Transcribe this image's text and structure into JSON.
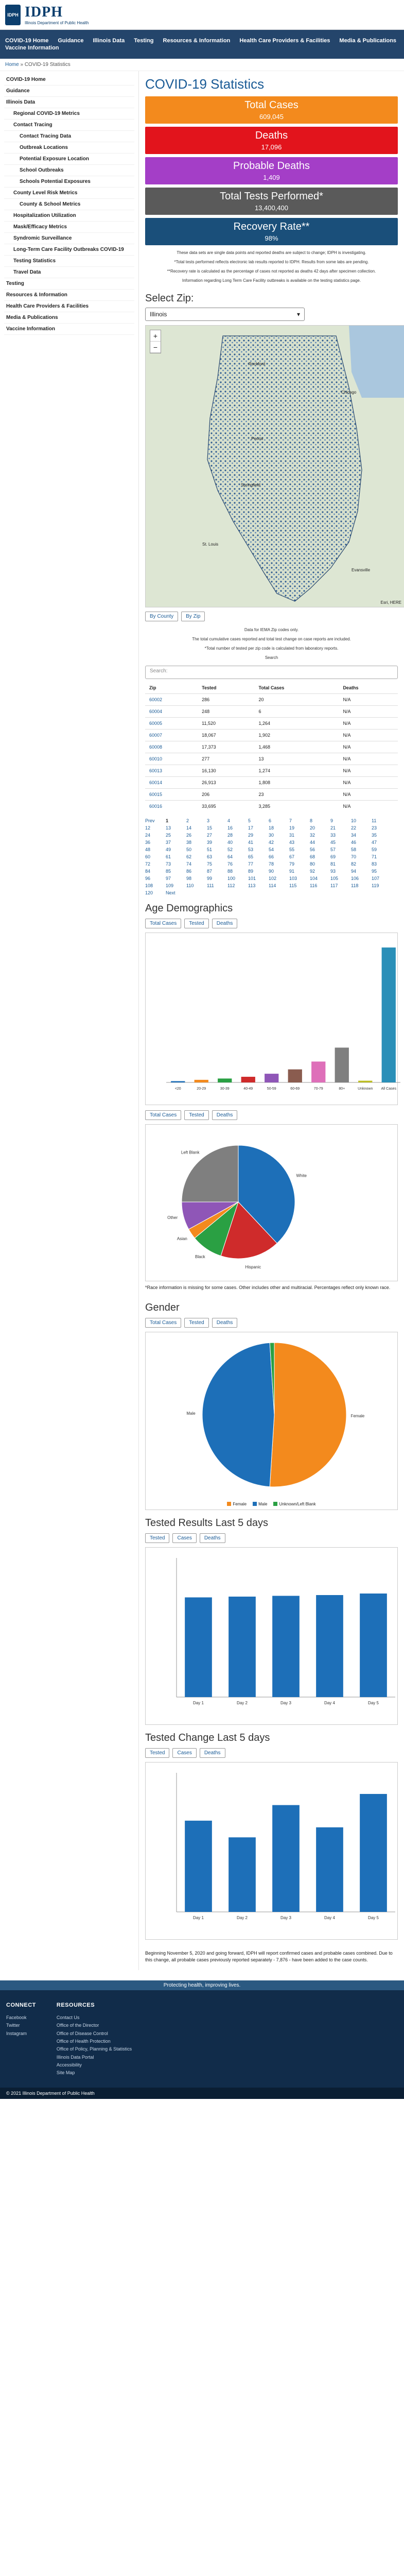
{
  "header": {
    "logo_abbr": "IDPH",
    "logo_text": "IDPH",
    "logo_sub": "Illinois Department of Public Health"
  },
  "nav": [
    "COVID-19 Home",
    "Guidance",
    "Illinois Data",
    "Testing",
    "Resources & Information",
    "Health Care Providers & Facilities",
    "Media & Publications",
    "Vaccine Information"
  ],
  "breadcrumb": {
    "home": "Home",
    "current": "COVID-19 Statistics"
  },
  "sidebar": [
    {
      "label": "COVID-19 Home",
      "kind": "bold"
    },
    {
      "label": "Guidance",
      "kind": "bold"
    },
    {
      "label": "Illinois Data",
      "kind": "bold"
    },
    {
      "label": "Regional COVID-19 Metrics",
      "kind": "sub"
    },
    {
      "label": "Contact Tracing",
      "kind": "sub"
    },
    {
      "label": "Contact Tracing Data",
      "kind": "sub2"
    },
    {
      "label": "Outbreak Locations",
      "kind": "sub2"
    },
    {
      "label": "Potential Exposure Location",
      "kind": "sub2"
    },
    {
      "label": "School Outbreaks",
      "kind": "sub2"
    },
    {
      "label": "Schools Potential Exposures",
      "kind": "sub2"
    },
    {
      "label": "County Level Risk Metrics",
      "kind": "sub"
    },
    {
      "label": "County & School Metrics",
      "kind": "sub2"
    },
    {
      "label": "Hospitalization Utilization",
      "kind": "sub"
    },
    {
      "label": "Mask/Efficacy Metrics",
      "kind": "sub"
    },
    {
      "label": "Syndromic Surveillance",
      "kind": "sub"
    },
    {
      "label": "Long-Term Care Facility Outbreaks COVID-19",
      "kind": "sub"
    },
    {
      "label": "Testing Statistics",
      "kind": "sub"
    },
    {
      "label": "Travel Data",
      "kind": "sub"
    },
    {
      "label": "Testing",
      "kind": "bold"
    },
    {
      "label": "Resources & Information",
      "kind": "bold"
    },
    {
      "label": "Health Care Providers & Facilities",
      "kind": "bold"
    },
    {
      "label": "Media & Publications",
      "kind": "bold"
    },
    {
      "label": "Vaccine Information",
      "kind": "bold"
    }
  ],
  "page_title": "COVID-19 Statistics",
  "stats": [
    {
      "label": "Total Cases",
      "value": "609,045",
      "color": "#f38a1d"
    },
    {
      "label": "Deaths",
      "value": "17,096",
      "color": "#e2141c"
    },
    {
      "label": "Probable Deaths",
      "value": "1,409",
      "color": "#a43ec7"
    },
    {
      "label": "Total Tests Performed*",
      "value": "13,400,400",
      "color": "#5a5a5a"
    },
    {
      "label": "Recovery Rate**",
      "value": "98%",
      "color": "#1a4f7a"
    }
  ],
  "notes": [
    "These data sets are single data points and reported deaths are subject to change; IDPH is investigating.",
    "*Total tests performed reflects electronic lab results reported to IDPH. Results from some labs are pending.",
    "**Recovery rate is calculated as the percentage of cases not reported as deaths 42 days after specimen collection.",
    "Information regarding Long Term Care Facility outbreaks is available on the testing statistics page."
  ],
  "select_zip": {
    "title": "Select Zip:",
    "value": "Illinois"
  },
  "map_labels": {
    "city1": "Rockford",
    "city2": "Chicago",
    "city3": "Peoria",
    "city4": "Springfield",
    "city5": "Evansville",
    "city6": "St. Louis",
    "source": "Esri, HERE"
  },
  "zip_buttons": [
    "By County",
    "By Zip"
  ],
  "zip_notes": [
    "Data for IEMA Zip codes only.",
    "The total cumulative cases reported and total test change on case reports are included.",
    "*Total number of tested per zip code is calculated from laboratory reports.",
    "Search"
  ],
  "search_placeholder": "Search:",
  "zip_table": {
    "headers": [
      "Zip",
      "Tested",
      "Total Cases",
      "Deaths"
    ],
    "rows": [
      [
        "60002",
        "286",
        "20",
        "N/A"
      ],
      [
        "60004",
        "248",
        "6",
        "N/A"
      ],
      [
        "60005",
        "11,520",
        "1,264",
        "N/A"
      ],
      [
        "60007",
        "18,067",
        "1,902",
        "N/A"
      ],
      [
        "60008",
        "17,373",
        "1,468",
        "N/A"
      ],
      [
        "60010",
        "277",
        "13",
        "N/A"
      ],
      [
        "60013",
        "16,130",
        "1,274",
        "N/A"
      ],
      [
        "60014",
        "26,913",
        "1,808",
        "N/A"
      ],
      [
        "60015",
        "206",
        "23",
        "N/A"
      ],
      [
        "60016",
        "33,695",
        "3,285",
        "N/A"
      ]
    ]
  },
  "pages": [
    "Prev",
    "1",
    "2",
    "3",
    "4",
    "5",
    "6",
    "7",
    "8",
    "9",
    "10",
    "11",
    "12",
    "13",
    "14",
    "15",
    "16",
    "17",
    "18",
    "19",
    "20",
    "21",
    "22",
    "23",
    "24",
    "25",
    "26",
    "27",
    "28",
    "29",
    "30",
    "31",
    "32",
    "33",
    "34",
    "35",
    "36",
    "37",
    "38",
    "39",
    "40",
    "41",
    "42",
    "43",
    "44",
    "45",
    "46",
    "47",
    "48",
    "49",
    "50",
    "51",
    "52",
    "53",
    "54",
    "55",
    "56",
    "57",
    "58",
    "59",
    "60",
    "61",
    "62",
    "63",
    "64",
    "65",
    "66",
    "67",
    "68",
    "69",
    "70",
    "71",
    "72",
    "73",
    "74",
    "75",
    "76",
    "77",
    "78",
    "79",
    "80",
    "81",
    "82",
    "83",
    "84",
    "85",
    "86",
    "87",
    "88",
    "89",
    "90",
    "91",
    "92",
    "93",
    "94",
    "95",
    "96",
    "97",
    "98",
    "99",
    "100",
    "101",
    "102",
    "103",
    "104",
    "105",
    "106",
    "107",
    "108",
    "109",
    "110",
    "111",
    "112",
    "113",
    "114",
    "115",
    "116",
    "117",
    "118",
    "119",
    "120",
    "Next"
  ],
  "age_title": "Age Demographics",
  "age_buttons": [
    "Total Cases",
    "Tested",
    "Deaths"
  ],
  "race_title": "",
  "race_buttons": [
    "Total Cases",
    "Tested",
    "Deaths"
  ],
  "race_note": "*Race information is missing for some cases. Other includes other and multiracial. Percentages reflect only known race.",
  "gender_title": "Gender",
  "gender_buttons": [
    "Total Cases",
    "Tested",
    "Deaths"
  ],
  "tested_title": "Tested Results Last 5 days",
  "tested_buttons": [
    "Tested",
    "Cases",
    "Deaths"
  ],
  "change_title": "Tested Change Last 5 days",
  "change_buttons": [
    "Tested",
    "Cases",
    "Deaths"
  ],
  "change_note": "Beginning November 5, 2020 and going forward, IDPH will report confirmed cases and probable cases combined. Due to this change, all probable cases previously reported separately - 7,876 - have been added to the case counts.",
  "footer_banner": "Protecting health, improving lives.",
  "footer_cols": [
    {
      "title": "CONNECT",
      "links": [
        "Facebook",
        "Twitter",
        "Instagram"
      ]
    },
    {
      "title": "RESOURCES",
      "links": [
        "Contact Us",
        "Office of the Director",
        "Office of Disease Control",
        "Office of Health Protection",
        "Office of Policy, Planning & Statistics",
        "Illinois Data Portal",
        "Accessibility",
        "Site Map"
      ]
    }
  ],
  "footer_copy": "© 2021 Illinois Department of Public Health",
  "chart_data": [
    {
      "type": "bar",
      "title": "Age Demographics",
      "categories": [
        "<20",
        "20-29",
        "30-39",
        "40-49",
        "50-59",
        "60-69",
        "70-79",
        "80+",
        "Unknown",
        "All Cases"
      ],
      "series": [
        {
          "name": "",
          "values": [
            3,
            6,
            9,
            13,
            20,
            30,
            48,
            80,
            4,
            310
          ]
        }
      ]
    },
    {
      "type": "pie",
      "title": "",
      "categories": [
        "White",
        "Hispanic",
        "Black",
        "Asian",
        "Other",
        "Left Blank"
      ],
      "values": [
        38,
        17,
        9,
        3,
        8,
        25
      ]
    },
    {
      "type": "pie",
      "title": "Gender",
      "categories": [
        "Female",
        "Male",
        "Unknown/Left Blank"
      ],
      "values": [
        51,
        48,
        1
      ]
    },
    {
      "type": "bar",
      "title": "Tested Results Last 5 days",
      "categories": [
        "Day 1",
        "Day 2",
        "Day 3",
        "Day 4",
        "Day 5"
      ],
      "series": [
        {
          "name": "",
          "values": [
            12900000,
            13000000,
            13100000,
            13200000,
            13400000
          ]
        }
      ],
      "ylim": [
        0,
        18000000
      ]
    },
    {
      "type": "bar",
      "title": "Tested Change Last 5 days",
      "categories": [
        "Day 1",
        "Day 2",
        "Day 3",
        "Day 4",
        "Day 5"
      ],
      "series": [
        {
          "name": "",
          "values": [
            82000,
            67000,
            96000,
            76000,
            106000
          ]
        }
      ],
      "ylim": [
        0,
        125000
      ]
    }
  ]
}
